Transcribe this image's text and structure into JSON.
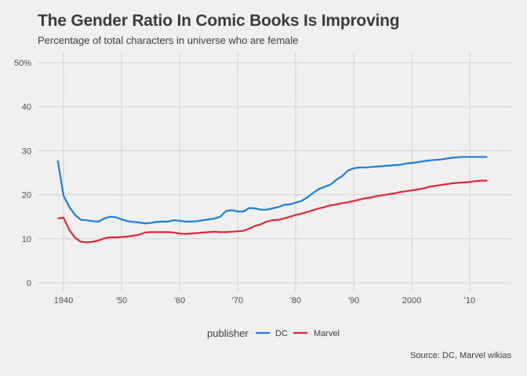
{
  "header": {
    "title": "The Gender Ratio In Comic Books Is Improving",
    "subtitle": "Percentage of total characters in universe who are female"
  },
  "caption": "Source: DC, Marvel wikias",
  "legend": {
    "title": "publisher"
  },
  "chart_data": {
    "type": "line",
    "title": "The Gender Ratio In Comic Books Is Improving",
    "subtitle": "Percentage of total characters in universe who are female",
    "xlabel": "",
    "ylabel": "",
    "xlim": [
      1937,
      2016
    ],
    "ylim": [
      0,
      52
    ],
    "y_ticks": [
      0,
      10,
      20,
      30,
      40,
      50
    ],
    "y_tick_labels": [
      "0",
      "10",
      "20",
      "30",
      "40",
      "50%"
    ],
    "x_ticks": [
      1940,
      1950,
      1960,
      1970,
      1980,
      1990,
      2000,
      2010
    ],
    "x_tick_labels": [
      "1940",
      "'50",
      "'60",
      "'70",
      "'80",
      "'90",
      "2000",
      "'10"
    ],
    "grid": true,
    "legend_position": "bottom",
    "series": [
      {
        "name": "DC",
        "color": "#1f7fd6",
        "points": [
          [
            1939,
            27.8
          ],
          [
            1940,
            19.8
          ],
          [
            1941,
            17.2
          ],
          [
            1942,
            15.4
          ],
          [
            1943,
            14.3
          ],
          [
            1944,
            14.2
          ],
          [
            1945,
            14.0
          ],
          [
            1946,
            13.9
          ],
          [
            1947,
            14.6
          ],
          [
            1948,
            15.0
          ],
          [
            1949,
            14.9
          ],
          [
            1950,
            14.4
          ],
          [
            1951,
            14.0
          ],
          [
            1952,
            13.8
          ],
          [
            1953,
            13.7
          ],
          [
            1954,
            13.5
          ],
          [
            1955,
            13.6
          ],
          [
            1956,
            13.8
          ],
          [
            1957,
            13.9
          ],
          [
            1958,
            13.9
          ],
          [
            1959,
            14.2
          ],
          [
            1960,
            14.1
          ],
          [
            1961,
            13.9
          ],
          [
            1962,
            13.9
          ],
          [
            1963,
            14.0
          ],
          [
            1964,
            14.2
          ],
          [
            1965,
            14.4
          ],
          [
            1966,
            14.6
          ],
          [
            1967,
            15.0
          ],
          [
            1968,
            16.3
          ],
          [
            1969,
            16.5
          ],
          [
            1970,
            16.2
          ],
          [
            1971,
            16.2
          ],
          [
            1972,
            17.0
          ],
          [
            1973,
            16.9
          ],
          [
            1974,
            16.6
          ],
          [
            1975,
            16.6
          ],
          [
            1976,
            16.9
          ],
          [
            1977,
            17.2
          ],
          [
            1978,
            17.7
          ],
          [
            1979,
            17.8
          ],
          [
            1980,
            18.2
          ],
          [
            1981,
            18.6
          ],
          [
            1982,
            19.4
          ],
          [
            1983,
            20.4
          ],
          [
            1984,
            21.3
          ],
          [
            1985,
            21.8
          ],
          [
            1986,
            22.3
          ],
          [
            1987,
            23.4
          ],
          [
            1988,
            24.2
          ],
          [
            1989,
            25.5
          ],
          [
            1990,
            26.0
          ],
          [
            1991,
            26.2
          ],
          [
            1992,
            26.2
          ],
          [
            1993,
            26.3
          ],
          [
            1994,
            26.4
          ],
          [
            1995,
            26.5
          ],
          [
            1996,
            26.6
          ],
          [
            1997,
            26.7
          ],
          [
            1998,
            26.8
          ],
          [
            1999,
            27.1
          ],
          [
            2000,
            27.2
          ],
          [
            2001,
            27.4
          ],
          [
            2002,
            27.6
          ],
          [
            2003,
            27.8
          ],
          [
            2004,
            27.9
          ],
          [
            2005,
            28.0
          ],
          [
            2006,
            28.2
          ],
          [
            2007,
            28.4
          ],
          [
            2008,
            28.5
          ],
          [
            2009,
            28.6
          ],
          [
            2010,
            28.6
          ],
          [
            2011,
            28.6
          ],
          [
            2012,
            28.6
          ],
          [
            2013,
            28.6
          ]
        ]
      },
      {
        "name": "Marvel",
        "color": "#e32636",
        "points": [
          [
            1939,
            14.6
          ],
          [
            1940,
            14.8
          ],
          [
            1941,
            12.0
          ],
          [
            1942,
            10.2
          ],
          [
            1943,
            9.3
          ],
          [
            1944,
            9.2
          ],
          [
            1945,
            9.3
          ],
          [
            1946,
            9.6
          ],
          [
            1947,
            10.1
          ],
          [
            1948,
            10.3
          ],
          [
            1949,
            10.3
          ],
          [
            1950,
            10.4
          ],
          [
            1951,
            10.5
          ],
          [
            1952,
            10.7
          ],
          [
            1953,
            10.9
          ],
          [
            1954,
            11.4
          ],
          [
            1955,
            11.5
          ],
          [
            1956,
            11.5
          ],
          [
            1957,
            11.5
          ],
          [
            1958,
            11.5
          ],
          [
            1959,
            11.4
          ],
          [
            1960,
            11.2
          ],
          [
            1961,
            11.1
          ],
          [
            1962,
            11.2
          ],
          [
            1963,
            11.3
          ],
          [
            1964,
            11.4
          ],
          [
            1965,
            11.5
          ],
          [
            1966,
            11.6
          ],
          [
            1967,
            11.5
          ],
          [
            1968,
            11.5
          ],
          [
            1969,
            11.6
          ],
          [
            1970,
            11.7
          ],
          [
            1971,
            11.8
          ],
          [
            1972,
            12.3
          ],
          [
            1973,
            12.9
          ],
          [
            1974,
            13.3
          ],
          [
            1975,
            13.9
          ],
          [
            1976,
            14.2
          ],
          [
            1977,
            14.3
          ],
          [
            1978,
            14.6
          ],
          [
            1979,
            15.0
          ],
          [
            1980,
            15.4
          ],
          [
            1981,
            15.7
          ],
          [
            1982,
            16.1
          ],
          [
            1983,
            16.5
          ],
          [
            1984,
            16.9
          ],
          [
            1985,
            17.2
          ],
          [
            1986,
            17.6
          ],
          [
            1987,
            17.8
          ],
          [
            1988,
            18.1
          ],
          [
            1989,
            18.3
          ],
          [
            1990,
            18.6
          ],
          [
            1991,
            18.9
          ],
          [
            1992,
            19.2
          ],
          [
            1993,
            19.4
          ],
          [
            1994,
            19.7
          ],
          [
            1995,
            19.9
          ],
          [
            1996,
            20.1
          ],
          [
            1997,
            20.3
          ],
          [
            1998,
            20.6
          ],
          [
            1999,
            20.8
          ],
          [
            2000,
            21.0
          ],
          [
            2001,
            21.2
          ],
          [
            2002,
            21.4
          ],
          [
            2003,
            21.8
          ],
          [
            2004,
            22.0
          ],
          [
            2005,
            22.2
          ],
          [
            2006,
            22.4
          ],
          [
            2007,
            22.6
          ],
          [
            2008,
            22.7
          ],
          [
            2009,
            22.8
          ],
          [
            2010,
            22.9
          ],
          [
            2011,
            23.1
          ],
          [
            2012,
            23.2
          ],
          [
            2013,
            23.2
          ]
        ]
      }
    ]
  }
}
